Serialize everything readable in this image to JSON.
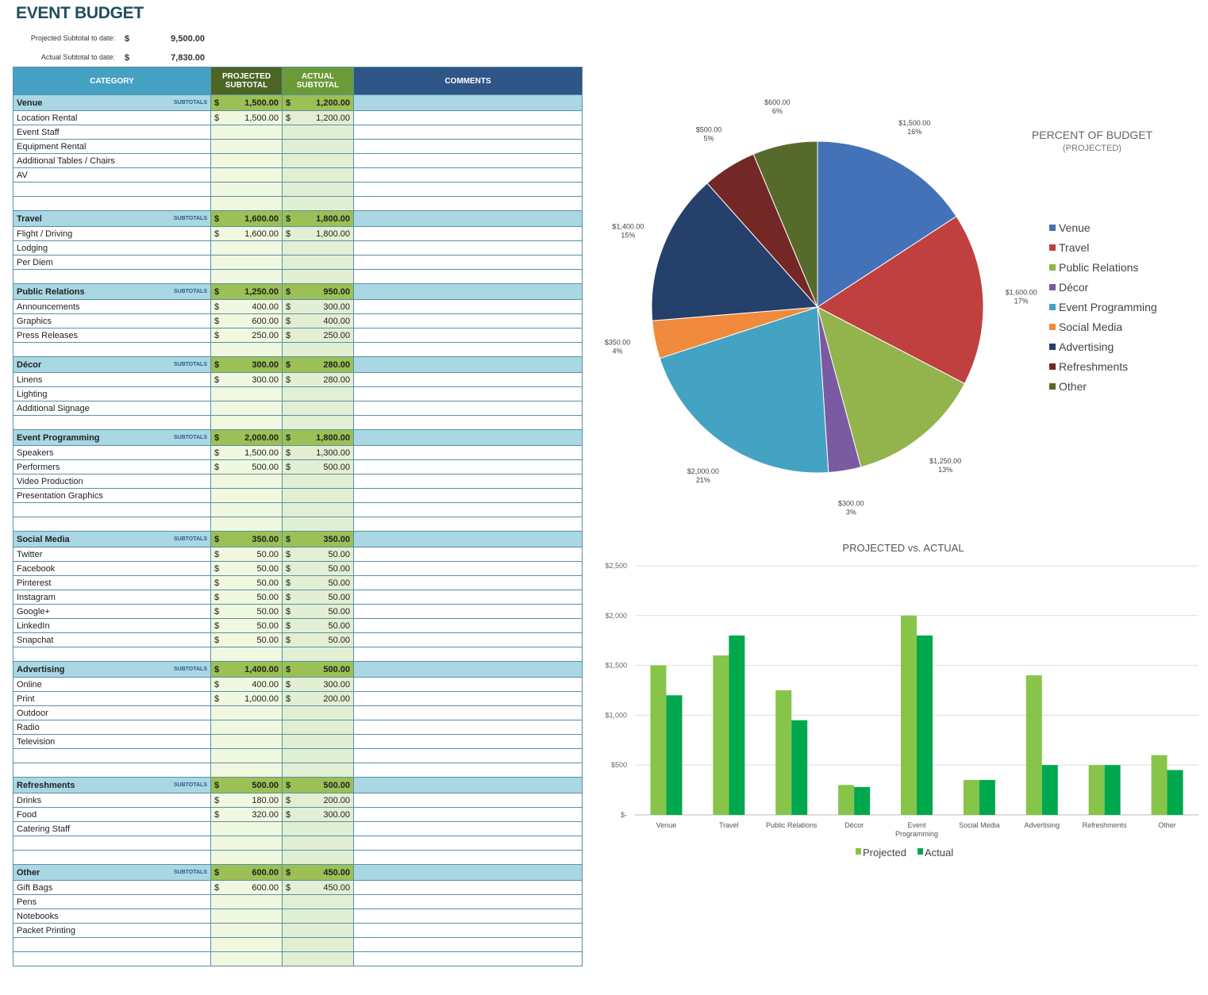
{
  "title": "EVENT BUDGET",
  "summary": {
    "projected_label": "Projected Subtotal to date:",
    "projected_value": "9,500.00",
    "actual_label": "Actual Subtotal to date:",
    "actual_value": "7,830.00",
    "currency": "$"
  },
  "headers": {
    "category": "CATEGORY",
    "projected": "PROJECTED SUBTOTAL",
    "actual": "ACTUAL SUBTOTAL",
    "comments": "COMMENTS",
    "subtotals": "SUBTOTALS"
  },
  "sections": [
    {
      "name": "Venue",
      "proj": "1,500.00",
      "act": "1,200.00",
      "blanks": 2,
      "items": [
        [
          "Location Rental",
          "1,500.00",
          "1,200.00"
        ],
        [
          "Event Staff"
        ],
        [
          "Equipment Rental"
        ],
        [
          "Additional Tables / Chairs"
        ],
        [
          "AV"
        ]
      ]
    },
    {
      "name": "Travel",
      "proj": "1,600.00",
      "act": "1,800.00",
      "blanks": 1,
      "items": [
        [
          "Flight / Driving",
          "1,600.00",
          "1,800.00"
        ],
        [
          "Lodging"
        ],
        [
          "Per Diem"
        ]
      ]
    },
    {
      "name": "Public Relations",
      "proj": "1,250.00",
      "act": "950.00",
      "blanks": 1,
      "items": [
        [
          "Announcements",
          "400.00",
          "300.00"
        ],
        [
          "Graphics",
          "600.00",
          "400.00"
        ],
        [
          "Press Releases",
          "250.00",
          "250.00"
        ]
      ]
    },
    {
      "name": "Décor",
      "proj": "300.00",
      "act": "280.00",
      "blanks": 1,
      "items": [
        [
          "Linens",
          "300.00",
          "280.00"
        ],
        [
          "Lighting"
        ],
        [
          "Additional Signage"
        ]
      ]
    },
    {
      "name": "Event Programming",
      "proj": "2,000.00",
      "act": "1,800.00",
      "blanks": 2,
      "items": [
        [
          "Speakers",
          "1,500.00",
          "1,300.00"
        ],
        [
          "Performers",
          "500.00",
          "500.00"
        ],
        [
          "Video Production"
        ],
        [
          "Presentation Graphics"
        ]
      ]
    },
    {
      "name": "Social Media",
      "proj": "350.00",
      "act": "350.00",
      "blanks": 1,
      "items": [
        [
          "Twitter",
          "50.00",
          "50.00"
        ],
        [
          "Facebook",
          "50.00",
          "50.00"
        ],
        [
          "Pinterest",
          "50.00",
          "50.00"
        ],
        [
          "Instagram",
          "50.00",
          "50.00"
        ],
        [
          "Google+",
          "50.00",
          "50.00"
        ],
        [
          "LinkedIn",
          "50.00",
          "50.00"
        ],
        [
          "Snapchat",
          "50.00",
          "50.00"
        ]
      ]
    },
    {
      "name": "Advertising",
      "proj": "1,400.00",
      "act": "500.00",
      "blanks": 2,
      "items": [
        [
          "Online",
          "400.00",
          "300.00"
        ],
        [
          "Print",
          "1,000.00",
          "200.00"
        ],
        [
          "Outdoor"
        ],
        [
          "Radio"
        ],
        [
          "Television"
        ]
      ]
    },
    {
      "name": "Refreshments",
      "proj": "500.00",
      "act": "500.00",
      "blanks": 2,
      "items": [
        [
          "Drinks",
          "180.00",
          "200.00"
        ],
        [
          "Food",
          "320.00",
          "300.00"
        ],
        [
          "Catering Staff"
        ]
      ]
    },
    {
      "name": "Other",
      "proj": "600.00",
      "act": "450.00",
      "blanks": 2,
      "items": [
        [
          "Gift Bags",
          "600.00",
          "450.00"
        ],
        [
          "Pens"
        ],
        [
          "Notebooks"
        ],
        [
          "Packet Printing"
        ]
      ]
    }
  ],
  "chart_data": [
    {
      "type": "pie",
      "title": "PERCENT OF BUDGET",
      "subtitle": "(PROJECTED)",
      "legend": "right",
      "categories": [
        "Venue",
        "Travel",
        "Public Relations",
        "Décor",
        "Event Programming",
        "Social Media",
        "Advertising",
        "Refreshments",
        "Other"
      ],
      "values": [
        1500,
        1600,
        1250,
        300,
        2000,
        350,
        1400,
        500,
        600
      ],
      "value_labels": [
        "$1,500.00",
        "$1,600.00",
        "$1,250.00",
        "$300.00",
        "$2,000.00",
        "$350.00",
        "$1,400.00",
        "$500.00",
        "$600.00"
      ],
      "percent_labels": [
        "16%",
        "17%",
        "13%",
        "3%",
        "21%",
        "4%",
        "15%",
        "5%",
        "6%"
      ],
      "colors": [
        "#4472b8",
        "#c0403f",
        "#93b44d",
        "#7a5aa0",
        "#44a2c3",
        "#f08a3c",
        "#24406b",
        "#732826",
        "#566b2b"
      ]
    },
    {
      "type": "bar",
      "title": "PROJECTED vs. ACTUAL",
      "legend": "bottom",
      "grid": true,
      "ylim": [
        0,
        2500
      ],
      "yticks": [
        "$-",
        "$500",
        "$1,000",
        "$1,500",
        "$2,000",
        "$2,500"
      ],
      "categories": [
        "Venue",
        "Travel",
        "Public Relations",
        "Décor",
        "Event Programming",
        "Social Media",
        "Advertising",
        "Refreshments",
        "Other"
      ],
      "series": [
        {
          "name": "Projected",
          "color": "#86c44a",
          "values": [
            1500,
            1600,
            1250,
            300,
            2000,
            350,
            1400,
            500,
            600
          ]
        },
        {
          "name": "Actual",
          "color": "#00a84d",
          "values": [
            1200,
            1800,
            950,
            280,
            1800,
            350,
            500,
            500,
            450
          ]
        }
      ]
    }
  ]
}
